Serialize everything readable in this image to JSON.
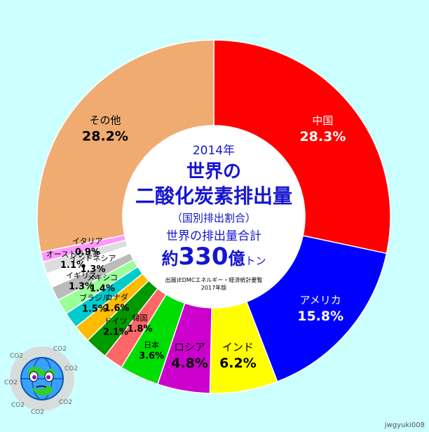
{
  "chart_data": {
    "type": "pie",
    "slices": [
      {
        "name": "中国",
        "value": 28.3,
        "label": "28.3%",
        "color": "#ff0000",
        "label_color": "#ffffff"
      },
      {
        "name": "アメリカ",
        "value": 15.8,
        "label": "15.8%",
        "color": "#0000ff",
        "label_color": "#ffffff"
      },
      {
        "name": "インド",
        "value": 6.2,
        "label": "6.2%",
        "color": "#ffff00",
        "label_color": "#000000"
      },
      {
        "name": "ロシア",
        "value": 4.8,
        "label": "4.8%",
        "color": "#cc00cc",
        "label_color": "#000000"
      },
      {
        "name": "日本",
        "value": 3.6,
        "label": "3.6%",
        "color": "#00dd00",
        "label_color": "#000000"
      },
      {
        "name": "韓国",
        "value": 1.8,
        "label": "1.8%",
        "color": "#ff6666",
        "label_color": "#000000"
      },
      {
        "name": "ドイツ",
        "value": 2.1,
        "label": "2.1%",
        "color": "#009900",
        "label_color": "#000000"
      },
      {
        "name": "カナダ",
        "value": 1.6,
        "label": "1.6%",
        "color": "#ffbb00",
        "label_color": "#000000"
      },
      {
        "name": "ブラジル",
        "value": 1.5,
        "label": "1.5%",
        "color": "#00cccc",
        "label_color": "#000000"
      },
      {
        "name": "メキシコ",
        "value": 1.4,
        "label": "1.4%",
        "color": "#99ff99",
        "label_color": "#000000"
      },
      {
        "name": "イギリス",
        "value": 1.3,
        "label": "1.3%",
        "color": "#bbbbbb",
        "label_color": "#000000"
      },
      {
        "name": "インドネシア",
        "value": 1.3,
        "label": "1.3%",
        "color": "#ffffff",
        "label_color": "#000000"
      },
      {
        "name": "オーストラリア",
        "value": 1.1,
        "label": "1.1%",
        "color": "#dddddd",
        "label_color": "#000000"
      },
      {
        "name": "イタリア",
        "value": 0.9,
        "label": "0.9%",
        "color": "#ff99ff",
        "label_color": "#000000"
      },
      {
        "name": "その他",
        "value": 28.2,
        "label": "28.2%",
        "color": "#f2b07a",
        "label_color": "#000000"
      }
    ]
  },
  "center": {
    "year": "2014年",
    "title_line1": "世界の",
    "title_line2": "二酸化炭素排出量",
    "subtitle": "（国別排出割合）",
    "total_label": "世界の排出量合計",
    "total_prefix": "約",
    "total_value": "330",
    "total_unit": "億",
    "total_suffix": "トン",
    "source": "出展)EDMCエネルギー・経済統計要覧",
    "edition": "2017年版"
  },
  "watermark": "jwgyuki008",
  "colors": {
    "background": "#ccffff",
    "title": "#1515d0"
  }
}
